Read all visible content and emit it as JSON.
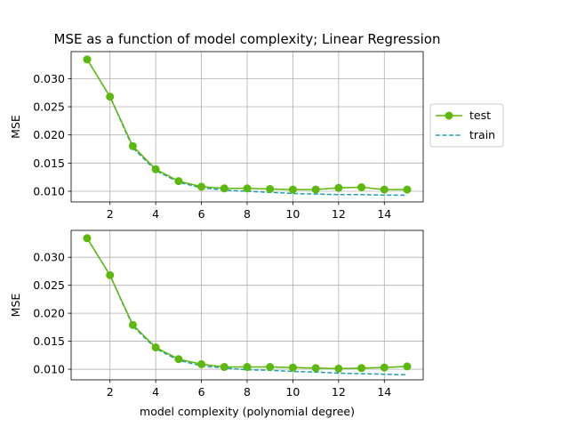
{
  "chart_data": [
    {
      "type": "line",
      "title": "MSE as a function of model complexity; Linear Regression",
      "xlabel": "",
      "ylabel": "MSE",
      "x": [
        1,
        2,
        3,
        4,
        5,
        6,
        7,
        8,
        9,
        10,
        11,
        12,
        13,
        14,
        15
      ],
      "xticks": [
        2,
        4,
        6,
        8,
        10,
        12,
        14
      ],
      "yticks": [
        0.01,
        0.015,
        0.02,
        0.025,
        0.03
      ],
      "ytick_labels": [
        "0.010",
        "0.015",
        "0.020",
        "0.025",
        "0.030"
      ],
      "xlim": [
        0.3,
        15.7
      ],
      "ylim": [
        0.0081,
        0.0348
      ],
      "grid": true,
      "legend": {
        "placement": "outside-right"
      },
      "series": [
        {
          "name": "test",
          "color": "#5cb80a",
          "style": "solid-marker",
          "values": [
            0.0334,
            0.0268,
            0.018,
            0.0139,
            0.0118,
            0.0108,
            0.0105,
            0.0105,
            0.0104,
            0.0103,
            0.0103,
            0.0106,
            0.0107,
            0.0103,
            0.0103
          ]
        },
        {
          "name": "train",
          "color": "#1f9fb4",
          "style": "dashed",
          "values": [
            0.0334,
            0.0268,
            0.0177,
            0.0137,
            0.0116,
            0.0106,
            0.0102,
            0.01,
            0.0098,
            0.0096,
            0.0095,
            0.0094,
            0.0094,
            0.0093,
            0.0093
          ]
        }
      ]
    },
    {
      "type": "line",
      "title": "",
      "xlabel": "model complexity (polynomial degree)",
      "ylabel": "MSE",
      "x": [
        1,
        2,
        3,
        4,
        5,
        6,
        7,
        8,
        9,
        10,
        11,
        12,
        13,
        14,
        15
      ],
      "xticks": [
        2,
        4,
        6,
        8,
        10,
        12,
        14
      ],
      "yticks": [
        0.01,
        0.015,
        0.02,
        0.025,
        0.03
      ],
      "ytick_labels": [
        "0.010",
        "0.015",
        "0.020",
        "0.025",
        "0.030"
      ],
      "xlim": [
        0.3,
        15.7
      ],
      "ylim": [
        0.0081,
        0.0348
      ],
      "grid": true,
      "series": [
        {
          "name": "test",
          "color": "#5cb80a",
          "style": "solid-marker",
          "values": [
            0.0334,
            0.0268,
            0.0179,
            0.0139,
            0.0118,
            0.0109,
            0.0104,
            0.0104,
            0.0104,
            0.0103,
            0.0102,
            0.0101,
            0.0102,
            0.0103,
            0.0105
          ]
        },
        {
          "name": "train",
          "color": "#1f9fb4",
          "style": "dashed",
          "values": [
            0.0334,
            0.0268,
            0.0177,
            0.0137,
            0.0116,
            0.0106,
            0.0102,
            0.0099,
            0.0098,
            0.0096,
            0.0095,
            0.0093,
            0.0092,
            0.0091,
            0.009
          ]
        }
      ]
    }
  ]
}
